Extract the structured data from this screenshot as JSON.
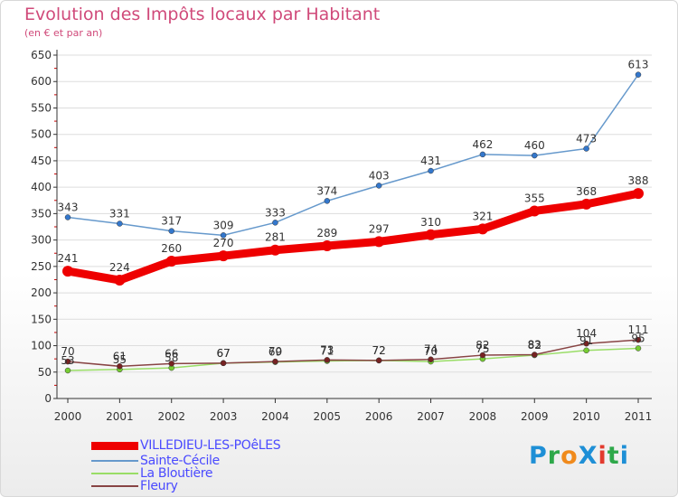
{
  "title": "Evolution des Impôts locaux par Habitant",
  "subtitle": "(en € et par an)",
  "logo": {
    "text": "ProXiti",
    "colors": [
      "#1e8fd6",
      "#2ea84a",
      "#f08a1c",
      "#1e8fd6",
      "#e23a2e",
      "#2ea84a",
      "#1e8fd6"
    ]
  },
  "colors": {
    "title": "#d04a7a",
    "axis": "#333333",
    "grid": "#dddddd",
    "minor_tick": "#cc0000",
    "legend_text": "#4a4aff"
  },
  "chart_data": {
    "type": "line",
    "title": "Evolution des Impôts locaux par Habitant",
    "subtitle": "(en € et par an)",
    "x": [
      "2000",
      "2001",
      "2002",
      "2003",
      "2004",
      "2005",
      "2006",
      "2007",
      "2008",
      "2009",
      "2010",
      "2011"
    ],
    "ylim": [
      0,
      650
    ],
    "yticks": [
      0,
      50,
      100,
      150,
      200,
      250,
      300,
      350,
      400,
      450,
      500,
      550,
      600,
      650
    ],
    "grid": "horizontal",
    "legend_position": "bottom-left",
    "series": [
      {
        "name": "VILLEDIEU-LES-POêLES",
        "color": "#ee0000",
        "marker_color": "#ee0000",
        "line_width": 9,
        "marker_radius": 6,
        "values": [
          241,
          224,
          260,
          270,
          281,
          289,
          297,
          310,
          321,
          355,
          368,
          388
        ]
      },
      {
        "name": "Sainte-Cécile",
        "color": "#6699cc",
        "marker_color": "#3377cc",
        "line_width": 1.5,
        "marker_radius": 3,
        "values": [
          343,
          331,
          317,
          309,
          333,
          374,
          403,
          431,
          462,
          460,
          473,
          613
        ]
      },
      {
        "name": "La Bloutière",
        "color": "#99dd66",
        "marker_color": "#77cc33",
        "line_width": 1.5,
        "marker_radius": 3,
        "values": [
          53,
          55,
          58,
          67,
          69,
          71,
          72,
          70,
          75,
          82,
          91,
          95
        ]
      },
      {
        "name": "Fleury",
        "color": "#884444",
        "marker_color": "#772222",
        "line_width": 1.5,
        "marker_radius": 3,
        "values": [
          70,
          61,
          66,
          67,
          70,
          73,
          72,
          74,
          82,
          83,
          104,
          111
        ]
      }
    ]
  }
}
